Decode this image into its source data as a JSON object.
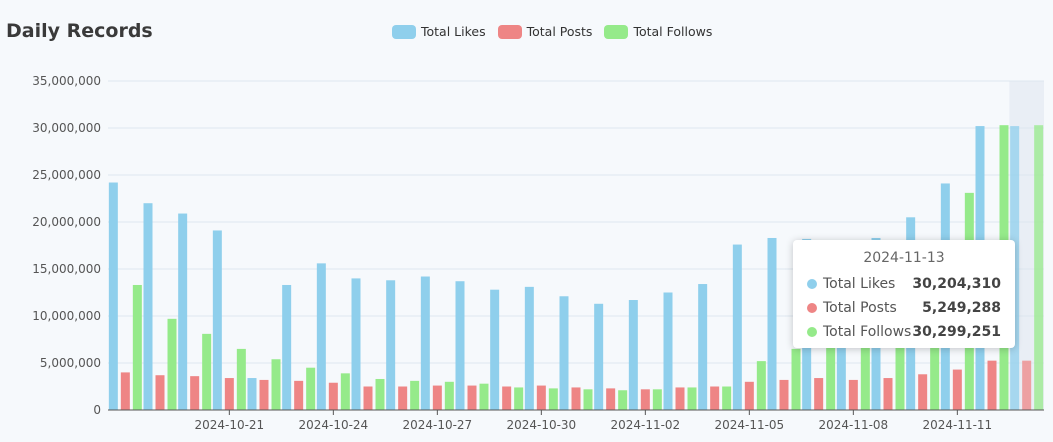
{
  "chart_data": {
    "type": "bar",
    "title": "Daily Records",
    "x": [
      "2024-10-18",
      "2024-10-19",
      "2024-10-20",
      "2024-10-21",
      "2024-10-22",
      "2024-10-23",
      "2024-10-24",
      "2024-10-25",
      "2024-10-26",
      "2024-10-27",
      "2024-10-28",
      "2024-10-29",
      "2024-10-30",
      "2024-10-31",
      "2024-11-01",
      "2024-11-02",
      "2024-11-03",
      "2024-11-04",
      "2024-11-05",
      "2024-11-06",
      "2024-11-07",
      "2024-11-08",
      "2024-11-09",
      "2024-11-10",
      "2024-11-11",
      "2024-11-12",
      "2024-11-13"
    ],
    "xtick_labels": [
      "2024-10-21",
      "2024-10-24",
      "2024-10-27",
      "2024-10-30",
      "2024-11-02",
      "2024-11-05",
      "2024-11-08",
      "2024-11-11"
    ],
    "series": [
      {
        "name": "Total Likes",
        "color": "#8fcfec",
        "values": [
          24200000,
          22000000,
          20900000,
          19100000,
          3400000,
          13300000,
          15600000,
          14000000,
          13800000,
          14200000,
          13700000,
          12800000,
          13100000,
          12100000,
          11300000,
          11700000,
          12500000,
          13400000,
          17600000,
          18300000,
          18200000,
          18000000,
          18300000,
          20500000,
          24100000,
          30204310,
          30204310
        ]
      },
      {
        "name": "Total Posts",
        "color": "#ee8585",
        "values": [
          4000000,
          3700000,
          3600000,
          3400000,
          3200000,
          3100000,
          2900000,
          2500000,
          2500000,
          2600000,
          2600000,
          2500000,
          2600000,
          2400000,
          2300000,
          2200000,
          2400000,
          2500000,
          3000000,
          3200000,
          3400000,
          3200000,
          3400000,
          3800000,
          4300000,
          5249288,
          5249288
        ]
      },
      {
        "name": "Total Follows",
        "color": "#95ea8a",
        "values": [
          13300000,
          9700000,
          8100000,
          6500000,
          5400000,
          4500000,
          3900000,
          3300000,
          3100000,
          3000000,
          2800000,
          2400000,
          2300000,
          2200000,
          2100000,
          2200000,
          2400000,
          2500000,
          5200000,
          6500000,
          7800000,
          9000000,
          10500000,
          11500000,
          23100000,
          30299251,
          30299251
        ]
      }
    ],
    "ylim": [
      0,
      35000000
    ],
    "yticks": [
      0,
      5000000,
      10000000,
      15000000,
      20000000,
      25000000,
      30000000,
      35000000
    ],
    "ytick_labels": [
      "0",
      "5,000,000",
      "10,000,000",
      "15,000,000",
      "20,000,000",
      "25,000,000",
      "30,000,000",
      "35,000,000"
    ],
    "highlight_index": 26,
    "grid": true,
    "legend_position": "top-center"
  },
  "tooltip": {
    "title": "2024-11-13",
    "rows": [
      {
        "name": "Total Likes",
        "value": "30,204,310",
        "color": "#8fcfec"
      },
      {
        "name": "Total Posts",
        "value": "5,249,288",
        "color": "#ee8585"
      },
      {
        "name": "Total Follows",
        "value": "30,299,251",
        "color": "#95ea8a"
      }
    ]
  }
}
